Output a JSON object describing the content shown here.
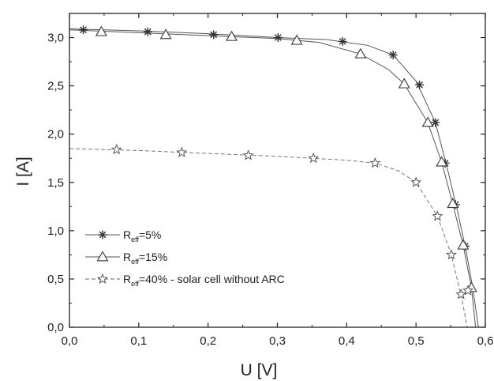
{
  "chart_data": {
    "type": "line",
    "title": "",
    "xlabel": "U [V]",
    "ylabel": "I [A]",
    "xlim": [
      0.0,
      0.6
    ],
    "ylim": [
      0.0,
      3.25
    ],
    "x_ticks": [
      "0,0",
      "0,1",
      "0,2",
      "0,3",
      "0,4",
      "0,5",
      "0,6"
    ],
    "y_ticks": [
      "0,0",
      "0,5",
      "1,0",
      "1,5",
      "2,0",
      "2,5",
      "3,0"
    ],
    "grid": false,
    "legend_position": "bottom-left",
    "series": [
      {
        "name": "R_eff=5%",
        "legend_main": "R",
        "legend_sub": "eff",
        "legend_rest": "=5%",
        "marker": "asterisk",
        "line_style": "solid",
        "points": [
          [
            0.02,
            3.08
          ],
          [
            0.113,
            3.06
          ],
          [
            0.208,
            3.03
          ],
          [
            0.301,
            3.0
          ],
          [
            0.394,
            2.96
          ],
          [
            0.467,
            2.82
          ],
          [
            0.505,
            2.51
          ],
          [
            0.528,
            2.12
          ],
          [
            0.542,
            1.7
          ],
          [
            0.557,
            1.27
          ],
          [
            0.571,
            0.84
          ]
        ],
        "curve": [
          [
            0.0,
            3.09
          ],
          [
            0.1,
            3.07
          ],
          [
            0.2,
            3.04
          ],
          [
            0.3,
            3.0
          ],
          [
            0.37,
            2.98
          ],
          [
            0.43,
            2.92
          ],
          [
            0.467,
            2.82
          ],
          [
            0.5,
            2.55
          ],
          [
            0.528,
            2.12
          ],
          [
            0.545,
            1.65
          ],
          [
            0.56,
            1.2
          ],
          [
            0.572,
            0.8
          ],
          [
            0.582,
            0.4
          ],
          [
            0.59,
            0.0
          ]
        ]
      },
      {
        "name": "R_eff=15%",
        "legend_main": "R",
        "legend_sub": "eff",
        "legend_rest": "=15%",
        "marker": "triangle",
        "line_style": "solid",
        "points": [
          [
            0.046,
            3.06
          ],
          [
            0.139,
            3.03
          ],
          [
            0.234,
            3.01
          ],
          [
            0.328,
            2.97
          ],
          [
            0.42,
            2.83
          ],
          [
            0.483,
            2.52
          ],
          [
            0.517,
            2.12
          ],
          [
            0.537,
            1.71
          ],
          [
            0.553,
            1.28
          ],
          [
            0.568,
            0.85
          ],
          [
            0.58,
            0.41
          ]
        ],
        "curve": [
          [
            0.0,
            3.08
          ],
          [
            0.1,
            3.05
          ],
          [
            0.2,
            3.02
          ],
          [
            0.3,
            2.99
          ],
          [
            0.36,
            2.95
          ],
          [
            0.42,
            2.83
          ],
          [
            0.46,
            2.67
          ],
          [
            0.483,
            2.52
          ],
          [
            0.517,
            2.12
          ],
          [
            0.537,
            1.71
          ],
          [
            0.553,
            1.28
          ],
          [
            0.568,
            0.85
          ],
          [
            0.58,
            0.41
          ],
          [
            0.586,
            0.0
          ]
        ]
      },
      {
        "name": "R_eff=40% - solar cell without ARC",
        "legend_main": "R",
        "legend_sub": "eff",
        "legend_rest": "=40% - solar cell without ARC",
        "marker": "star",
        "line_style": "dashed",
        "points": [
          [
            0.068,
            1.84
          ],
          [
            0.162,
            1.81
          ],
          [
            0.258,
            1.78
          ],
          [
            0.352,
            1.75
          ],
          [
            0.441,
            1.7
          ],
          [
            0.5,
            1.5
          ],
          [
            0.531,
            1.15
          ],
          [
            0.551,
            0.75
          ],
          [
            0.565,
            0.34
          ],
          [
            0.575,
            0.38
          ]
        ],
        "curve": [
          [
            0.0,
            1.85
          ],
          [
            0.1,
            1.83
          ],
          [
            0.2,
            1.8
          ],
          [
            0.3,
            1.77
          ],
          [
            0.4,
            1.73
          ],
          [
            0.441,
            1.7
          ],
          [
            0.475,
            1.62
          ],
          [
            0.5,
            1.5
          ],
          [
            0.531,
            1.15
          ],
          [
            0.551,
            0.75
          ],
          [
            0.566,
            0.3
          ],
          [
            0.574,
            0.0
          ]
        ]
      }
    ]
  }
}
